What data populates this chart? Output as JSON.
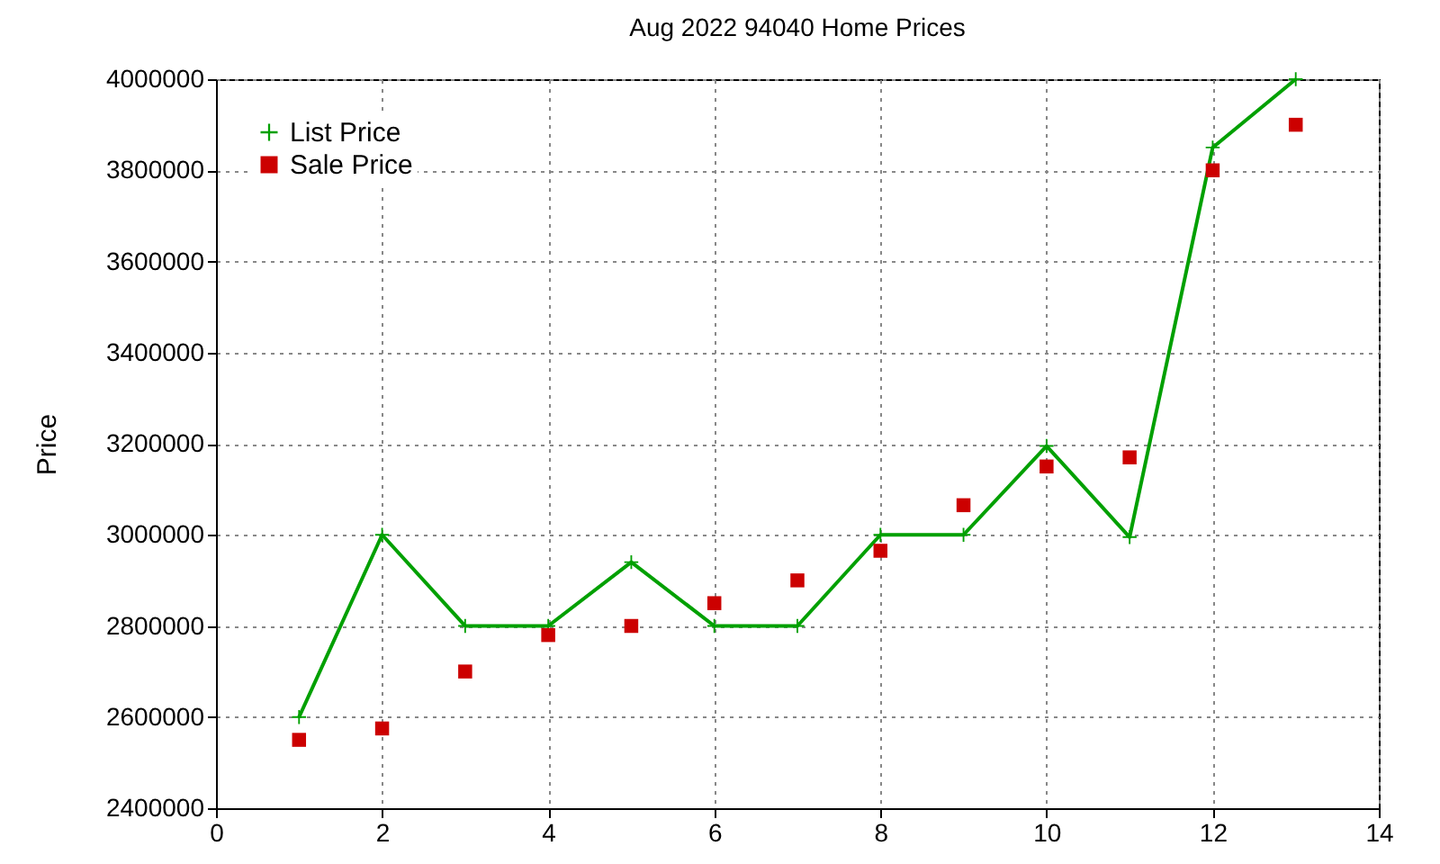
{
  "chart_data": {
    "type": "line",
    "title": "Aug 2022 94040 Home Prices",
    "ylabel": "Price",
    "x": [
      1,
      2,
      3,
      4,
      5,
      6,
      7,
      8,
      9,
      10,
      11,
      12,
      13
    ],
    "series": [
      {
        "name": "List Price",
        "marker": "cross",
        "color": "#00a000",
        "values": [
          2600000,
          3000000,
          2800000,
          2800000,
          2940000,
          2800000,
          2800000,
          3000000,
          3000000,
          3195000,
          2995000,
          3850000,
          4000000
        ]
      },
      {
        "name": "Sale Price",
        "type": "scatter",
        "marker": "square",
        "color": "#cc0000",
        "values": [
          2550000,
          2575000,
          2700000,
          2780000,
          2800000,
          2850000,
          2900000,
          2965000,
          3065000,
          3150000,
          3170000,
          3800000,
          3900000
        ]
      }
    ],
    "xlim": [
      0,
      14
    ],
    "xticks": [
      0,
      2,
      4,
      6,
      8,
      10,
      12,
      14
    ],
    "ylim": [
      2400000,
      4000000
    ],
    "yticks": [
      2400000,
      2600000,
      2800000,
      3000000,
      3200000,
      3400000,
      3600000,
      3800000,
      4000000
    ],
    "grid": true,
    "legend": "top left"
  }
}
